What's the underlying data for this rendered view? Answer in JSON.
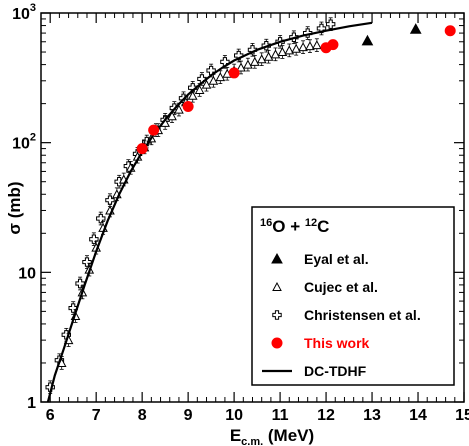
{
  "chart_data": {
    "type": "scatter",
    "title": "",
    "xlabel_main": "E",
    "xlabel_sub": "c.m.",
    "xlabel_unit": " (MeV)",
    "ylabel": "σ (mb)",
    "xlim": [
      5.8,
      15.0
    ],
    "ylim": [
      1,
      1000
    ],
    "y_scale": "log",
    "x_ticks": [
      "6",
      "7",
      "8",
      "9",
      "10",
      "11",
      "12",
      "13",
      "14",
      "15"
    ],
    "x_tick_values": [
      6,
      7,
      8,
      9,
      10,
      11,
      12,
      13,
      14,
      15
    ],
    "y_ticks": [
      "1",
      "10",
      "10",
      "10"
    ],
    "y_tick_exps": [
      "",
      "",
      "2",
      "3"
    ],
    "y_tick_values": [
      1,
      10,
      100,
      1000
    ],
    "legend": {
      "title_parts": [
        {
          "text": "16",
          "sup": true
        },
        {
          "text": "O + ",
          "sup": false
        },
        {
          "text": "12",
          "sup": true
        },
        {
          "text": "C",
          "sup": false
        }
      ],
      "position": "lower-right",
      "entries": [
        "Eyal et al.",
        "Cujec et al.",
        "Christensen et al.",
        "This work",
        "DC-TDHF"
      ]
    },
    "series": [
      {
        "name": "Eyal et al.",
        "marker": "filled-triangle",
        "color": "#000000",
        "points": [
          [
            12.9,
            610
          ],
          [
            13.95,
            750
          ]
        ]
      },
      {
        "name": "Cujec et al.",
        "marker": "open-triangle",
        "color": "#000000",
        "points": [
          [
            6.25,
            2.0
          ],
          [
            6.4,
            3.0
          ],
          [
            6.55,
            4.6
          ],
          [
            6.7,
            7.0
          ],
          [
            6.85,
            10.5
          ],
          [
            7.0,
            15.5
          ],
          [
            7.15,
            22
          ],
          [
            7.3,
            30
          ],
          [
            7.45,
            40
          ],
          [
            7.6,
            52
          ],
          [
            7.75,
            64
          ],
          [
            7.9,
            78
          ],
          [
            8.05,
            92
          ],
          [
            8.2,
            108
          ],
          [
            8.35,
            125
          ],
          [
            8.5,
            142
          ],
          [
            8.65,
            160
          ],
          [
            8.8,
            180
          ],
          [
            8.95,
            205
          ],
          [
            9.1,
            230
          ],
          [
            9.25,
            255
          ],
          [
            9.4,
            280
          ],
          [
            9.55,
            300
          ],
          [
            9.7,
            320
          ],
          [
            9.85,
            340
          ],
          [
            10.0,
            360
          ],
          [
            10.15,
            380
          ],
          [
            10.3,
            400
          ],
          [
            10.45,
            420
          ],
          [
            10.6,
            440
          ],
          [
            10.75,
            460
          ],
          [
            10.9,
            480
          ],
          [
            11.05,
            500
          ],
          [
            11.2,
            515
          ],
          [
            11.35,
            530
          ],
          [
            11.5,
            545
          ],
          [
            11.65,
            555
          ],
          [
            11.8,
            565
          ]
        ]
      },
      {
        "name": "Christensen et al.",
        "marker": "open-cross",
        "color": "#000000",
        "points": [
          [
            6.0,
            1.3
          ],
          [
            6.2,
            2.1
          ],
          [
            6.35,
            3.3
          ],
          [
            6.5,
            5.3
          ],
          [
            6.65,
            8.2
          ],
          [
            6.8,
            12
          ],
          [
            6.95,
            18
          ],
          [
            7.1,
            26
          ],
          [
            7.3,
            36
          ],
          [
            7.5,
            50
          ],
          [
            7.7,
            66
          ],
          [
            7.9,
            82
          ],
          [
            8.1,
            102
          ],
          [
            8.3,
            125
          ],
          [
            8.5,
            150
          ],
          [
            8.7,
            185
          ],
          [
            8.9,
            220
          ],
          [
            9.1,
            265
          ],
          [
            9.3,
            310
          ],
          [
            9.5,
            360
          ],
          [
            9.8,
            420
          ],
          [
            10.1,
            470
          ],
          [
            10.4,
            520
          ],
          [
            10.7,
            560
          ],
          [
            11.0,
            600
          ],
          [
            11.3,
            650
          ],
          [
            11.6,
            700
          ],
          [
            11.9,
            760
          ],
          [
            12.1,
            820
          ]
        ]
      },
      {
        "name": "This work",
        "marker": "filled-circle",
        "color": "#ff0000",
        "points": [
          [
            8.0,
            90
          ],
          [
            8.25,
            125
          ],
          [
            9.0,
            190
          ],
          [
            10.0,
            345
          ],
          [
            12.0,
            540
          ],
          [
            12.15,
            570
          ],
          [
            14.7,
            730
          ]
        ]
      },
      {
        "name": "DC-TDHF",
        "marker": "line",
        "color": "#000000",
        "points": [
          [
            5.95,
            1.0
          ],
          [
            6.1,
            1.6
          ],
          [
            6.3,
            2.6
          ],
          [
            6.5,
            4.3
          ],
          [
            6.75,
            8.0
          ],
          [
            7.0,
            14.5
          ],
          [
            7.25,
            25
          ],
          [
            7.5,
            40
          ],
          [
            7.75,
            60
          ],
          [
            8.0,
            85
          ],
          [
            8.25,
            115
          ],
          [
            8.5,
            150
          ],
          [
            8.75,
            190
          ],
          [
            9.0,
            235
          ],
          [
            9.25,
            280
          ],
          [
            9.5,
            330
          ],
          [
            9.75,
            380
          ],
          [
            10.0,
            430
          ],
          [
            10.5,
            520
          ],
          [
            11.0,
            600
          ],
          [
            11.5,
            670
          ],
          [
            12.0,
            730
          ],
          [
            12.5,
            790
          ],
          [
            13.0,
            840
          ]
        ]
      }
    ]
  }
}
